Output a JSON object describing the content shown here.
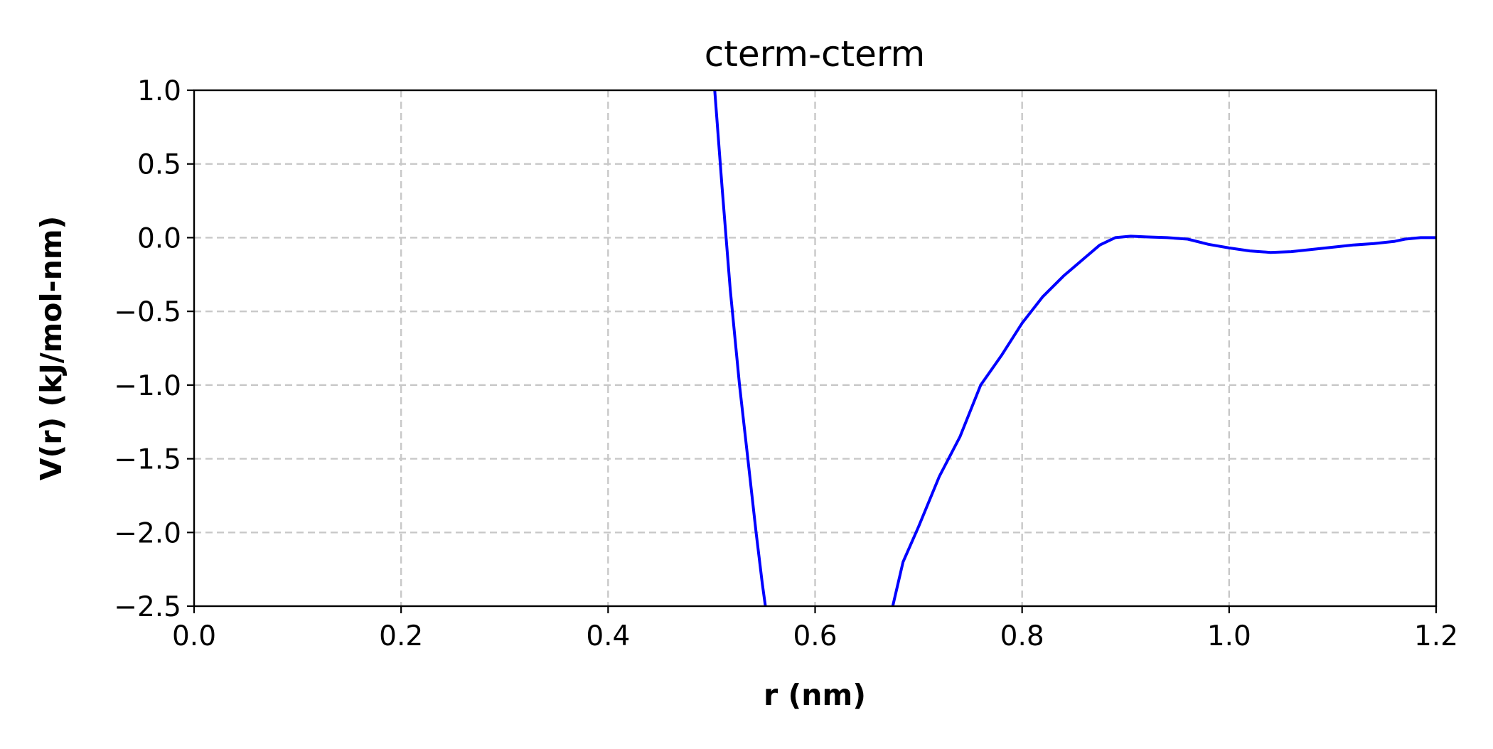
{
  "chart_data": {
    "type": "line",
    "title": "cterm-cterm",
    "xlabel": "r (nm)",
    "ylabel": "V(r) (kJ/mol-nm)",
    "xlim": [
      0.0,
      1.2
    ],
    "ylim": [
      -2.5,
      1.0
    ],
    "grid": true,
    "grid_style": "dashed",
    "legend": "none",
    "xticks": [
      0.0,
      0.2,
      0.4,
      0.6,
      0.8,
      1.0,
      1.2
    ],
    "xtick_labels": [
      "0.0",
      "0.2",
      "0.4",
      "0.6",
      "0.8",
      "1.0",
      "1.2"
    ],
    "yticks": [
      1.0,
      0.5,
      0.0,
      -0.5,
      -1.0,
      -1.5,
      -2.0,
      -2.5
    ],
    "ytick_labels": [
      "1.0",
      "0.5",
      "0.0",
      "−0.5",
      "−1.0",
      "−1.5",
      "−2.0",
      "−2.5"
    ],
    "series": [
      {
        "color": "#0000ff",
        "segments": [
          [
            [
              0.503,
              1.0
            ],
            [
              0.51,
              0.35
            ],
            [
              0.518,
              -0.35
            ],
            [
              0.527,
              -1.0
            ],
            [
              0.535,
              -1.5
            ],
            [
              0.543,
              -2.0
            ],
            [
              0.549,
              -2.35
            ],
            [
              0.552,
              -2.5
            ]
          ],
          [
            [
              0.675,
              -2.5
            ],
            [
              0.685,
              -2.2
            ],
            [
              0.7,
              -1.96
            ],
            [
              0.72,
              -1.62
            ],
            [
              0.74,
              -1.35
            ],
            [
              0.76,
              -1.0
            ],
            [
              0.78,
              -0.8
            ],
            [
              0.8,
              -0.58
            ],
            [
              0.82,
              -0.4
            ],
            [
              0.84,
              -0.26
            ],
            [
              0.86,
              -0.14
            ],
            [
              0.875,
              -0.05
            ],
            [
              0.89,
              0.0
            ],
            [
              0.905,
              0.01
            ],
            [
              0.92,
              0.005
            ],
            [
              0.94,
              0.0
            ],
            [
              0.96,
              -0.01
            ],
            [
              0.98,
              -0.045
            ],
            [
              1.0,
              -0.07
            ],
            [
              1.02,
              -0.09
            ],
            [
              1.04,
              -0.1
            ],
            [
              1.06,
              -0.095
            ],
            [
              1.08,
              -0.08
            ],
            [
              1.1,
              -0.065
            ],
            [
              1.12,
              -0.05
            ],
            [
              1.14,
              -0.04
            ],
            [
              1.16,
              -0.025
            ],
            [
              1.17,
              -0.01
            ],
            [
              1.185,
              0.0
            ],
            [
              1.2,
              0.0
            ]
          ]
        ]
      }
    ]
  }
}
